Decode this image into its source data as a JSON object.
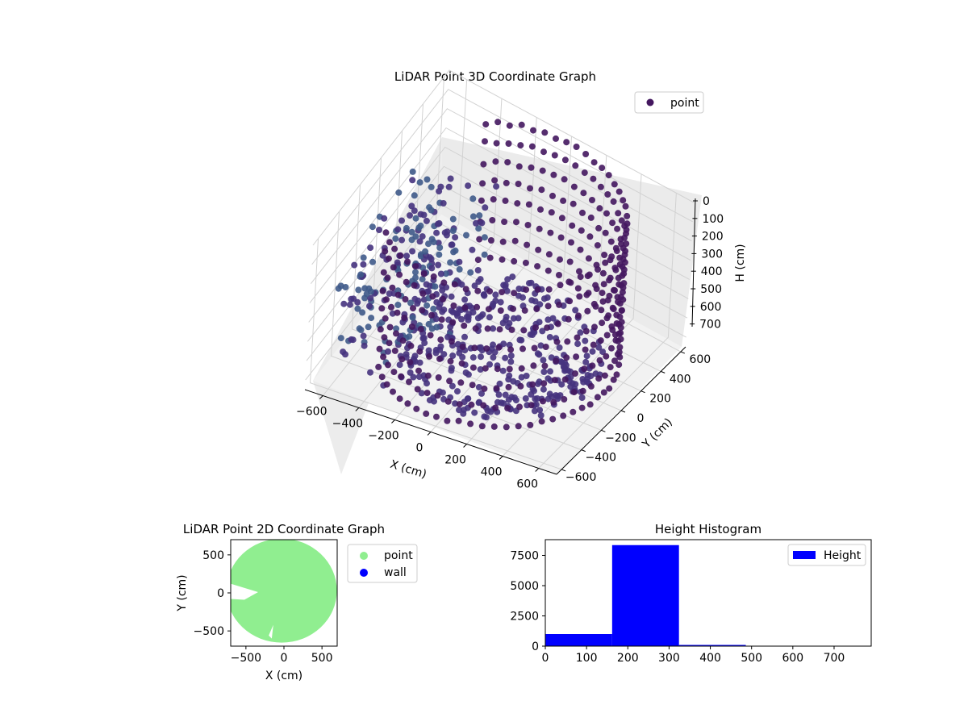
{
  "colors": {
    "points3d_dark": "#44175f",
    "points3d_mid": "#46337e",
    "points3d_light": "#3f5a8a",
    "point2d": "#90ee90",
    "wall": "#0000ff",
    "histogram": "#0000ff",
    "pane": "#f2f2f2",
    "grid": "#d0d0d0"
  },
  "chart_data": [
    {
      "type": "scatter",
      "projection": "3d",
      "title": "LiDAR Point 3D Coordinate Graph",
      "xlabel": "X (cm)",
      "ylabel": "Y (cm)",
      "zlabel": "H (cm)",
      "xlim": [
        -700,
        700
      ],
      "ylim": [
        -650,
        650
      ],
      "zlim": [
        0,
        750
      ],
      "zaxis_inverted": true,
      "xticks": [
        "−600",
        "−400",
        "−200",
        "0",
        "200",
        "400",
        "600"
      ],
      "yticks": [
        "−600",
        "−400",
        "−200",
        "0",
        "200",
        "400",
        "600"
      ],
      "zticks": [
        "0",
        "100",
        "200",
        "300",
        "400",
        "500",
        "600",
        "700"
      ],
      "legend": {
        "entries": [
          "point"
        ],
        "placement": "top-right"
      },
      "grid": true,
      "series": [
        {
          "name": "point",
          "shape": "ring of wall points (radius ~600 cm) with floor points near center and scattered points toward negative X",
          "wall_radius_cm": 600,
          "wall_heights_cm": [
            0,
            100,
            200,
            300,
            400,
            500,
            600,
            700
          ]
        }
      ]
    },
    {
      "type": "scatter",
      "title": "LiDAR Point 2D Coordinate Graph",
      "xlabel": "X (cm)",
      "ylabel": "Y (cm)",
      "xlim": [
        -700,
        700
      ],
      "ylim": [
        -700,
        700
      ],
      "xticks": [
        "−500",
        "0",
        "500"
      ],
      "yticks": [
        "−500",
        "0",
        "500"
      ],
      "legend": {
        "entries": [
          "point",
          "wall"
        ],
        "placement": "outside-right"
      },
      "series": [
        {
          "name": "point",
          "shape": "filled disc of radius ~620 cm with a notch on the left side"
        },
        {
          "name": "wall",
          "points": []
        }
      ]
    },
    {
      "type": "bar",
      "title": "Height Histogram",
      "xlim": [
        0,
        790
      ],
      "ylim": [
        0,
        8800
      ],
      "xticks": [
        "0",
        "100",
        "200",
        "300",
        "400",
        "500",
        "600",
        "700"
      ],
      "yticks": [
        "0",
        "2500",
        "5000",
        "7500"
      ],
      "legend": {
        "entries": [
          "Height"
        ],
        "placement": "top-right"
      },
      "series": [
        {
          "name": "Height",
          "bins": [
            {
              "start": 0,
              "end": 162,
              "value": 1000
            },
            {
              "start": 162,
              "end": 324,
              "value": 8350
            },
            {
              "start": 324,
              "end": 486,
              "value": 100
            },
            {
              "start": 486,
              "end": 648,
              "value": 10
            },
            {
              "start": 648,
              "end": 790,
              "value": 5
            }
          ]
        }
      ]
    }
  ]
}
